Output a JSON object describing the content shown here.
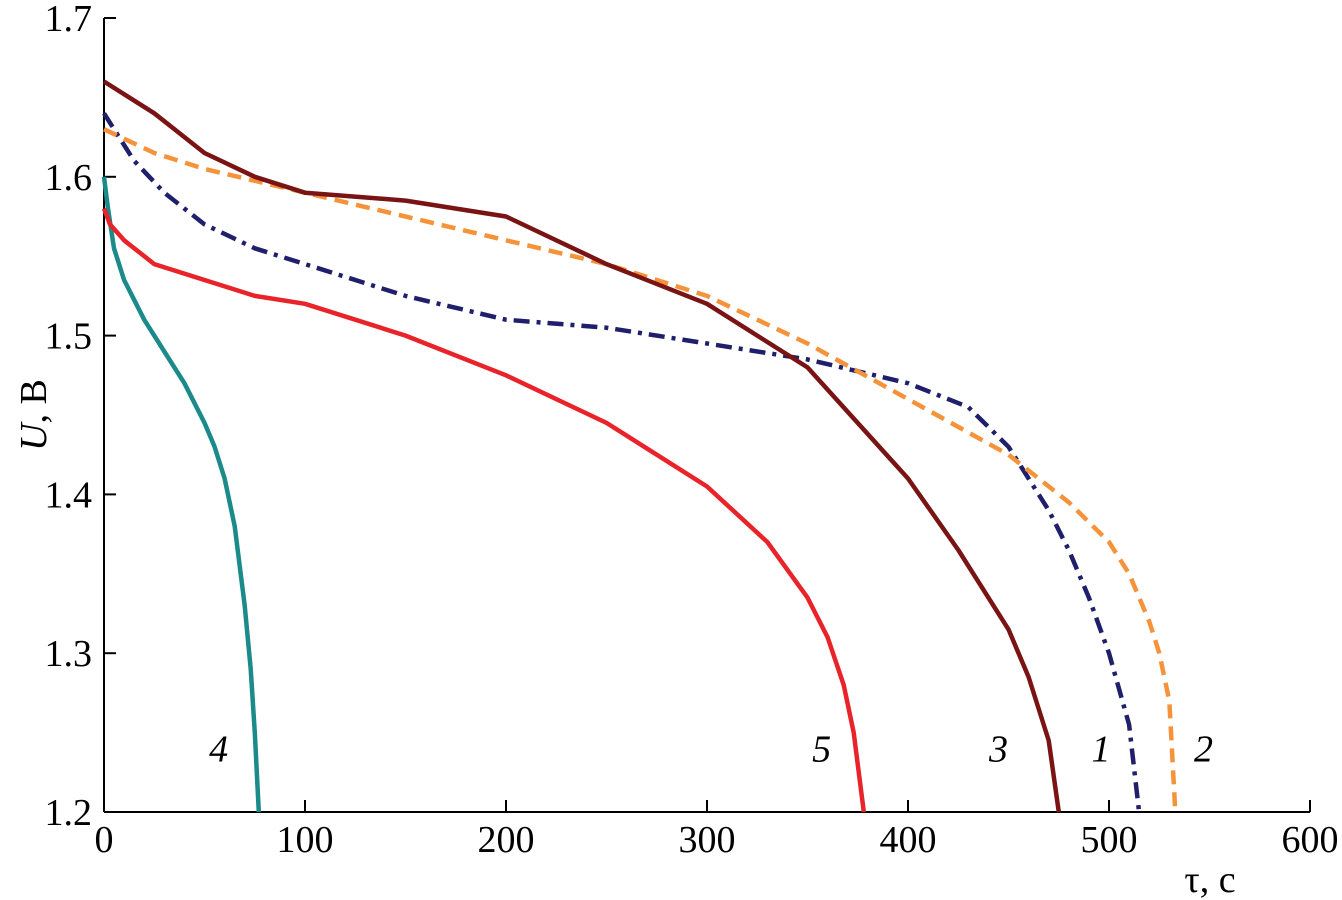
{
  "chart_data": {
    "type": "line",
    "title": "",
    "xlabel": "τ, с",
    "ylabel_italic": "U",
    "ylabel_rest": ", В",
    "xlim": [
      0,
      600
    ],
    "ylim": [
      1.2,
      1.7
    ],
    "xticks": [
      "0",
      "100",
      "200",
      "300",
      "400",
      "500",
      "600"
    ],
    "yticks": [
      "1.2",
      "1.3",
      "1.4",
      "1.5",
      "1.6",
      "1.7"
    ],
    "grid": false,
    "series": [
      {
        "label": "1",
        "color": "#1f1f6b",
        "style": "dashdot",
        "points": [
          [
            0,
            1.64
          ],
          [
            5,
            1.63
          ],
          [
            15,
            1.61
          ],
          [
            30,
            1.59
          ],
          [
            50,
            1.57
          ],
          [
            75,
            1.555
          ],
          [
            100,
            1.545
          ],
          [
            150,
            1.525
          ],
          [
            200,
            1.51
          ],
          [
            250,
            1.505
          ],
          [
            300,
            1.495
          ],
          [
            350,
            1.485
          ],
          [
            400,
            1.47
          ],
          [
            430,
            1.455
          ],
          [
            450,
            1.43
          ],
          [
            460,
            1.41
          ],
          [
            470,
            1.39
          ],
          [
            480,
            1.365
          ],
          [
            490,
            1.335
          ],
          [
            500,
            1.3
          ],
          [
            510,
            1.255
          ],
          [
            515,
            1.2
          ]
        ],
        "label_x": 496,
        "label_y": 1.24
      },
      {
        "label": "2",
        "color": "#f5933a",
        "style": "dashed",
        "points": [
          [
            0,
            1.63
          ],
          [
            25,
            1.615
          ],
          [
            50,
            1.605
          ],
          [
            100,
            1.59
          ],
          [
            150,
            1.575
          ],
          [
            200,
            1.56
          ],
          [
            250,
            1.545
          ],
          [
            300,
            1.525
          ],
          [
            350,
            1.495
          ],
          [
            400,
            1.46
          ],
          [
            450,
            1.425
          ],
          [
            480,
            1.395
          ],
          [
            500,
            1.37
          ],
          [
            510,
            1.35
          ],
          [
            520,
            1.32
          ],
          [
            525,
            1.3
          ],
          [
            530,
            1.27
          ],
          [
            533,
            1.2
          ]
        ],
        "label_x": 547,
        "label_y": 1.24
      },
      {
        "label": "3",
        "color": "#7a1414",
        "style": "solid",
        "points": [
          [
            0,
            1.66
          ],
          [
            25,
            1.64
          ],
          [
            50,
            1.615
          ],
          [
            75,
            1.6
          ],
          [
            100,
            1.59
          ],
          [
            150,
            1.585
          ],
          [
            200,
            1.575
          ],
          [
            250,
            1.545
          ],
          [
            300,
            1.52
          ],
          [
            350,
            1.48
          ],
          [
            400,
            1.41
          ],
          [
            425,
            1.365
          ],
          [
            450,
            1.315
          ],
          [
            460,
            1.285
          ],
          [
            470,
            1.245
          ],
          [
            475,
            1.2
          ]
        ],
        "label_x": 445,
        "label_y": 1.24
      },
      {
        "label": "4",
        "color": "#1a8a8a",
        "style": "solid",
        "points": [
          [
            0,
            1.6
          ],
          [
            2,
            1.58
          ],
          [
            5,
            1.555
          ],
          [
            10,
            1.535
          ],
          [
            20,
            1.51
          ],
          [
            30,
            1.49
          ],
          [
            40,
            1.47
          ],
          [
            50,
            1.445
          ],
          [
            55,
            1.43
          ],
          [
            60,
            1.41
          ],
          [
            65,
            1.38
          ],
          [
            70,
            1.33
          ],
          [
            73,
            1.29
          ],
          [
            75,
            1.25
          ],
          [
            77,
            1.2
          ]
        ],
        "label_x": 57,
        "label_y": 1.24
      },
      {
        "label": "5",
        "color": "#e8242a",
        "style": "solid",
        "points": [
          [
            0,
            1.58
          ],
          [
            3,
            1.57
          ],
          [
            10,
            1.56
          ],
          [
            25,
            1.545
          ],
          [
            50,
            1.535
          ],
          [
            75,
            1.525
          ],
          [
            100,
            1.52
          ],
          [
            150,
            1.5
          ],
          [
            200,
            1.475
          ],
          [
            250,
            1.445
          ],
          [
            300,
            1.405
          ],
          [
            330,
            1.37
          ],
          [
            350,
            1.335
          ],
          [
            360,
            1.31
          ],
          [
            368,
            1.28
          ],
          [
            373,
            1.25
          ],
          [
            378,
            1.2
          ]
        ],
        "label_x": 357,
        "label_y": 1.24
      }
    ]
  }
}
